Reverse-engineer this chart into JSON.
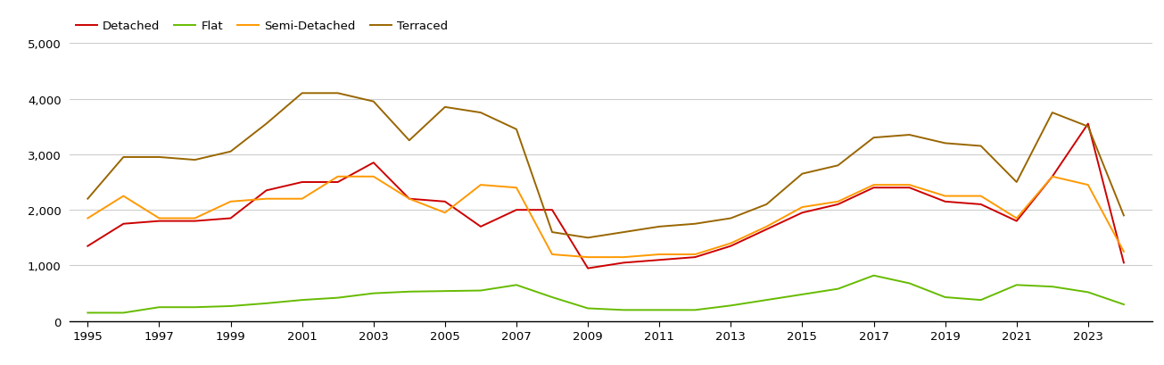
{
  "years": [
    1995,
    1996,
    1997,
    1998,
    1999,
    2000,
    2001,
    2002,
    2003,
    2004,
    2005,
    2006,
    2007,
    2008,
    2009,
    2010,
    2011,
    2012,
    2013,
    2014,
    2015,
    2016,
    2017,
    2018,
    2019,
    2020,
    2021,
    2022,
    2023,
    2024
  ],
  "detached": [
    1350,
    1750,
    1800,
    1800,
    1850,
    2350,
    2500,
    2500,
    2850,
    2200,
    2150,
    1700,
    2000,
    2000,
    950,
    1050,
    1100,
    1150,
    1350,
    1650,
    1950,
    2100,
    2400,
    2400,
    2150,
    2100,
    1800,
    2600,
    3550,
    1050
  ],
  "flat": [
    150,
    150,
    250,
    250,
    270,
    320,
    380,
    420,
    500,
    530,
    540,
    550,
    650,
    430,
    230,
    200,
    200,
    200,
    280,
    380,
    480,
    580,
    820,
    680,
    430,
    380,
    650,
    620,
    520,
    300
  ],
  "semi_detached": [
    1850,
    2250,
    1850,
    1850,
    2150,
    2200,
    2200,
    2600,
    2600,
    2200,
    1950,
    2450,
    2400,
    1200,
    1150,
    1150,
    1200,
    1200,
    1400,
    1700,
    2050,
    2150,
    2450,
    2450,
    2250,
    2250,
    1850,
    2600,
    2450,
    1250
  ],
  "terraced": [
    2200,
    2950,
    2950,
    2900,
    3050,
    3550,
    4100,
    4100,
    3950,
    3250,
    3850,
    3750,
    3450,
    1600,
    1500,
    1600,
    1700,
    1750,
    1850,
    2100,
    2650,
    2800,
    3300,
    3350,
    3200,
    3150,
    2500,
    3750,
    3500,
    1900
  ],
  "line_colors": {
    "detached": "#cc0000",
    "flat": "#66bb00",
    "semi_detached": "#ff9900",
    "terraced": "#996600"
  },
  "ylim": [
    0,
    5000
  ],
  "yticks": [
    0,
    1000,
    2000,
    3000,
    4000,
    5000
  ],
  "xtick_labels": [
    "1995",
    "1997",
    "1999",
    "2001",
    "2003",
    "2005",
    "2007",
    "2009",
    "2011",
    "2013",
    "2015",
    "2017",
    "2019",
    "2021",
    "2023"
  ],
  "background_color": "#ffffff",
  "grid_color": "#cccccc",
  "linewidth": 1.4,
  "tick_fontsize": 9.5
}
